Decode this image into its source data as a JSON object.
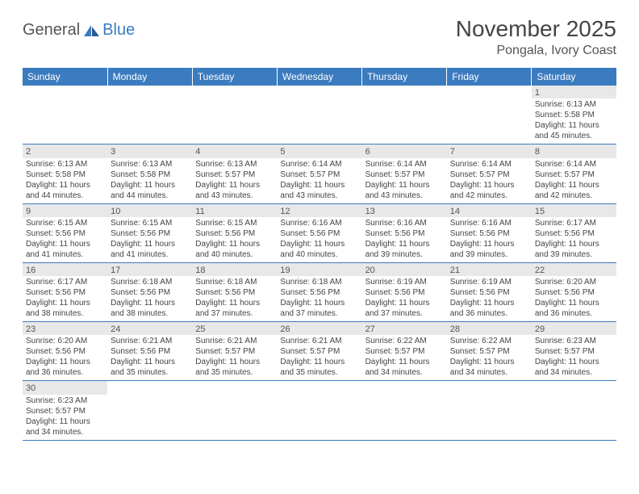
{
  "logo": {
    "general": "General",
    "blue": "Blue"
  },
  "title": "November 2025",
  "location": "Pongala, Ivory Coast",
  "colors": {
    "header_bg": "#3b7bbf",
    "header_text": "#ffffff",
    "daynum_bg": "#e8e8e8",
    "border": "#3b7bbf",
    "text": "#444444"
  },
  "day_headers": [
    "Sunday",
    "Monday",
    "Tuesday",
    "Wednesday",
    "Thursday",
    "Friday",
    "Saturday"
  ],
  "weeks": [
    [
      null,
      null,
      null,
      null,
      null,
      null,
      {
        "n": "1",
        "sr": "6:13 AM",
        "ss": "5:58 PM",
        "dl": "11 hours and 45 minutes."
      }
    ],
    [
      {
        "n": "2",
        "sr": "6:13 AM",
        "ss": "5:58 PM",
        "dl": "11 hours and 44 minutes."
      },
      {
        "n": "3",
        "sr": "6:13 AM",
        "ss": "5:58 PM",
        "dl": "11 hours and 44 minutes."
      },
      {
        "n": "4",
        "sr": "6:13 AM",
        "ss": "5:57 PM",
        "dl": "11 hours and 43 minutes."
      },
      {
        "n": "5",
        "sr": "6:14 AM",
        "ss": "5:57 PM",
        "dl": "11 hours and 43 minutes."
      },
      {
        "n": "6",
        "sr": "6:14 AM",
        "ss": "5:57 PM",
        "dl": "11 hours and 43 minutes."
      },
      {
        "n": "7",
        "sr": "6:14 AM",
        "ss": "5:57 PM",
        "dl": "11 hours and 42 minutes."
      },
      {
        "n": "8",
        "sr": "6:14 AM",
        "ss": "5:57 PM",
        "dl": "11 hours and 42 minutes."
      }
    ],
    [
      {
        "n": "9",
        "sr": "6:15 AM",
        "ss": "5:56 PM",
        "dl": "11 hours and 41 minutes."
      },
      {
        "n": "10",
        "sr": "6:15 AM",
        "ss": "5:56 PM",
        "dl": "11 hours and 41 minutes."
      },
      {
        "n": "11",
        "sr": "6:15 AM",
        "ss": "5:56 PM",
        "dl": "11 hours and 40 minutes."
      },
      {
        "n": "12",
        "sr": "6:16 AM",
        "ss": "5:56 PM",
        "dl": "11 hours and 40 minutes."
      },
      {
        "n": "13",
        "sr": "6:16 AM",
        "ss": "5:56 PM",
        "dl": "11 hours and 39 minutes."
      },
      {
        "n": "14",
        "sr": "6:16 AM",
        "ss": "5:56 PM",
        "dl": "11 hours and 39 minutes."
      },
      {
        "n": "15",
        "sr": "6:17 AM",
        "ss": "5:56 PM",
        "dl": "11 hours and 39 minutes."
      }
    ],
    [
      {
        "n": "16",
        "sr": "6:17 AM",
        "ss": "5:56 PM",
        "dl": "11 hours and 38 minutes."
      },
      {
        "n": "17",
        "sr": "6:18 AM",
        "ss": "5:56 PM",
        "dl": "11 hours and 38 minutes."
      },
      {
        "n": "18",
        "sr": "6:18 AM",
        "ss": "5:56 PM",
        "dl": "11 hours and 37 minutes."
      },
      {
        "n": "19",
        "sr": "6:18 AM",
        "ss": "5:56 PM",
        "dl": "11 hours and 37 minutes."
      },
      {
        "n": "20",
        "sr": "6:19 AM",
        "ss": "5:56 PM",
        "dl": "11 hours and 37 minutes."
      },
      {
        "n": "21",
        "sr": "6:19 AM",
        "ss": "5:56 PM",
        "dl": "11 hours and 36 minutes."
      },
      {
        "n": "22",
        "sr": "6:20 AM",
        "ss": "5:56 PM",
        "dl": "11 hours and 36 minutes."
      }
    ],
    [
      {
        "n": "23",
        "sr": "6:20 AM",
        "ss": "5:56 PM",
        "dl": "11 hours and 36 minutes."
      },
      {
        "n": "24",
        "sr": "6:21 AM",
        "ss": "5:56 PM",
        "dl": "11 hours and 35 minutes."
      },
      {
        "n": "25",
        "sr": "6:21 AM",
        "ss": "5:57 PM",
        "dl": "11 hours and 35 minutes."
      },
      {
        "n": "26",
        "sr": "6:21 AM",
        "ss": "5:57 PM",
        "dl": "11 hours and 35 minutes."
      },
      {
        "n": "27",
        "sr": "6:22 AM",
        "ss": "5:57 PM",
        "dl": "11 hours and 34 minutes."
      },
      {
        "n": "28",
        "sr": "6:22 AM",
        "ss": "5:57 PM",
        "dl": "11 hours and 34 minutes."
      },
      {
        "n": "29",
        "sr": "6:23 AM",
        "ss": "5:57 PM",
        "dl": "11 hours and 34 minutes."
      }
    ],
    [
      {
        "n": "30",
        "sr": "6:23 AM",
        "ss": "5:57 PM",
        "dl": "11 hours and 34 minutes."
      },
      null,
      null,
      null,
      null,
      null,
      null
    ]
  ],
  "labels": {
    "sunrise": "Sunrise:",
    "sunset": "Sunset:",
    "daylight": "Daylight:"
  }
}
